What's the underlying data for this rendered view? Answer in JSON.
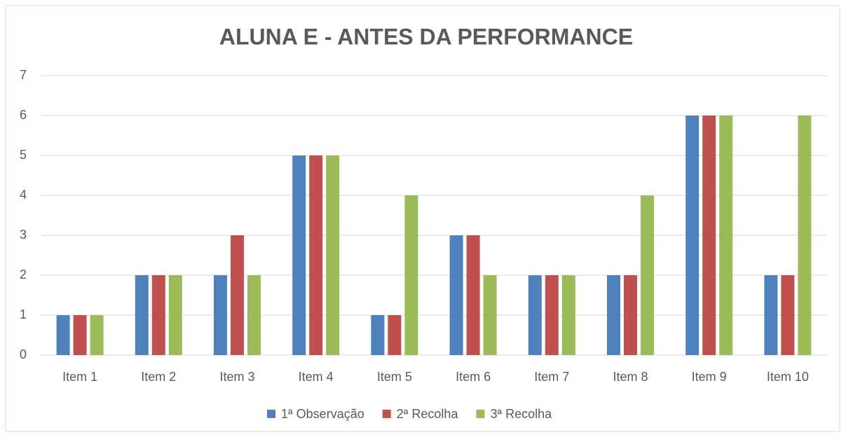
{
  "chart_data": {
    "type": "bar",
    "title": "ALUNA E - ANTES DA PERFORMANCE",
    "categories": [
      "Item 1",
      "Item 2",
      "Item 3",
      "Item 4",
      "Item 5",
      "Item 6",
      "Item 7",
      "Item 8",
      "Item 9",
      "Item 10"
    ],
    "series": [
      {
        "name": "1ª Observação",
        "color": "#4f81bd",
        "values": [
          1,
          2,
          2,
          5,
          1,
          3,
          2,
          2,
          6,
          2
        ]
      },
      {
        "name": "2ª Recolha",
        "color": "#c0504d",
        "values": [
          1,
          2,
          3,
          5,
          1,
          3,
          2,
          2,
          6,
          2
        ]
      },
      {
        "name": "3ª Recolha",
        "color": "#9bbb59",
        "values": [
          1,
          2,
          2,
          5,
          4,
          2,
          2,
          4,
          6,
          6
        ]
      }
    ],
    "ylim": [
      0,
      7
    ],
    "yticks": [
      0,
      1,
      2,
      3,
      4,
      5,
      6,
      7
    ],
    "grid": true,
    "legend": "bottom"
  }
}
